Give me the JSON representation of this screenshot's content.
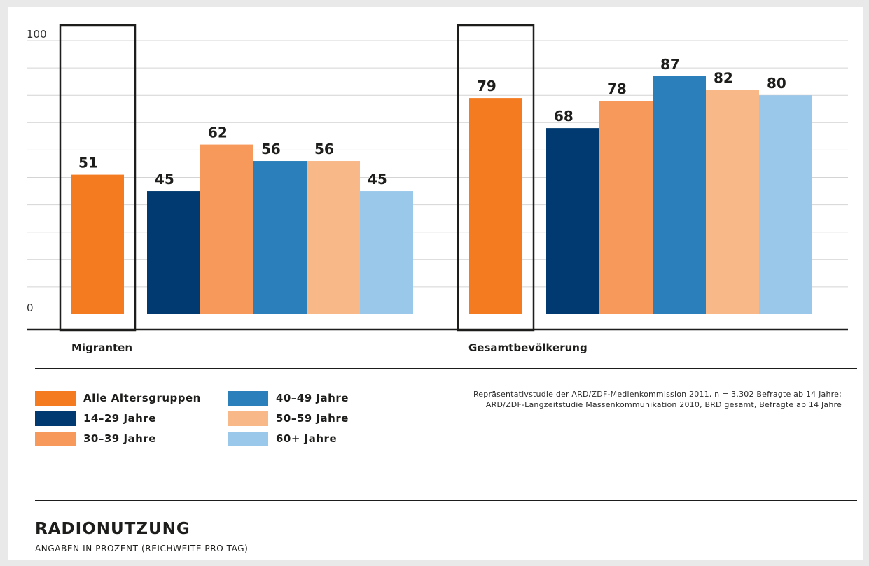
{
  "chart_data": {
    "type": "bar",
    "title": "RADIONUTZUNG",
    "subtitle": "ANGABEN IN PROZENT (REICHWEITE PRO TAG)",
    "ylim": [
      0,
      100
    ],
    "y_tick_labels": [
      "0",
      "100"
    ],
    "grid": true,
    "legend_placement": "bottom-left",
    "categories": [
      "Migranten",
      "Gesamtbevölkerung"
    ],
    "series": [
      {
        "name": "Alle Altersgruppen",
        "color": "#f47b20",
        "values": [
          51,
          79
        ],
        "highlighted": true
      },
      {
        "name": "14–29 Jahre",
        "color": "#003a70",
        "values": [
          45,
          68
        ]
      },
      {
        "name": "30–39 Jahre",
        "color": "#f7995a",
        "values": [
          62,
          78
        ]
      },
      {
        "name": "40–49 Jahre",
        "color": "#2b7fba",
        "values": [
          56,
          87
        ]
      },
      {
        "name": "50–59 Jahre",
        "color": "#f9b887",
        "values": [
          56,
          82
        ]
      },
      {
        "name": "60+ Jahre",
        "color": "#9ac8ea",
        "values": [
          45,
          80
        ]
      }
    ],
    "source_lines": [
      "Repräsentativstudie der ARD/ZDF-Medienkommission 2011, n = 3.302 Befragte ab 14 Jahre;",
      "ARD/ZDF-Langzeitstudie Massenkommunikation 2010, BRD gesamt, Befragte ab 14 Jahre"
    ]
  },
  "legend_items": [
    {
      "label": "Alle Altersgruppen",
      "color": "#f47b20"
    },
    {
      "label": "14–29 Jahre",
      "color": "#003a70"
    },
    {
      "label": "30–39 Jahre",
      "color": "#f7995a"
    },
    {
      "label": "40–49 Jahre",
      "color": "#2b7fba"
    },
    {
      "label": "50–59 Jahre",
      "color": "#f9b887"
    },
    {
      "label": "60+ Jahre",
      "color": "#9ac8ea"
    }
  ]
}
